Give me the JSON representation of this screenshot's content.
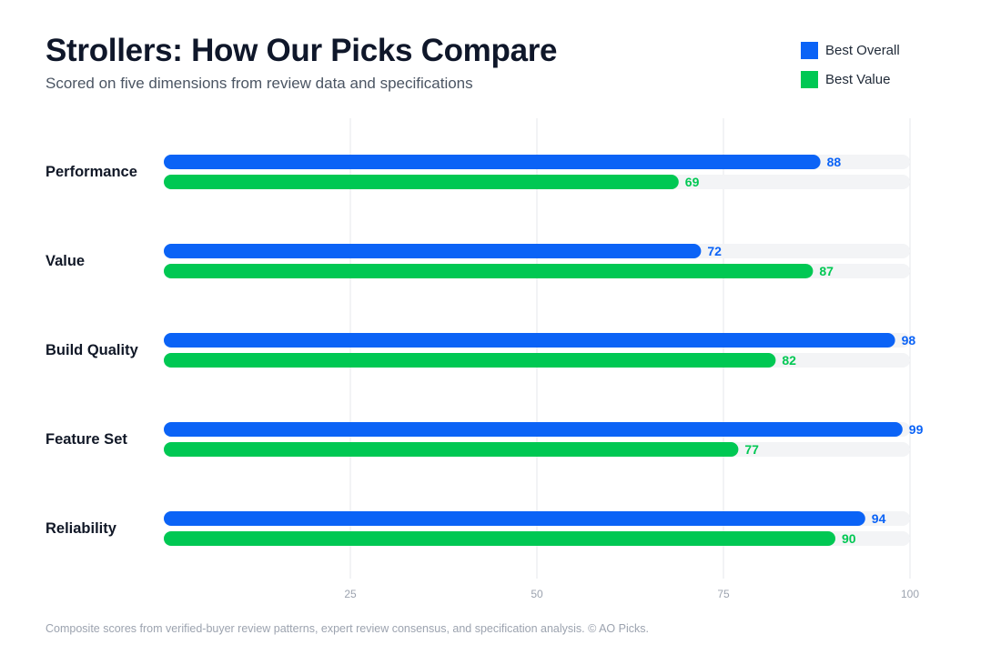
{
  "title": "Strollers: How Our Picks Compare",
  "subtitle": "Scored on five dimensions from review data and specifications",
  "footnote": "Composite scores from verified-buyer review patterns, expert review consensus, and specification analysis. © AO Picks.",
  "colors": {
    "best_overall": "#0b63f6",
    "best_value": "#00c853",
    "track": "#f3f4f6",
    "grid": "#e5e7eb",
    "tick_text": "#9ca3af"
  },
  "chart_data": {
    "type": "bar",
    "orientation": "horizontal",
    "categories": [
      "Performance",
      "Value",
      "Build Quality",
      "Feature Set",
      "Reliability"
    ],
    "series": [
      {
        "name": "Best Overall",
        "values": [
          88,
          72,
          98,
          99,
          94
        ]
      },
      {
        "name": "Best Value",
        "values": [
          69,
          87,
          82,
          77,
          90
        ]
      }
    ],
    "xlim": [
      0,
      100
    ],
    "xticks": [
      25,
      50,
      75,
      100
    ],
    "grid": true,
    "legend_position": "top-right",
    "data_labels": true
  }
}
